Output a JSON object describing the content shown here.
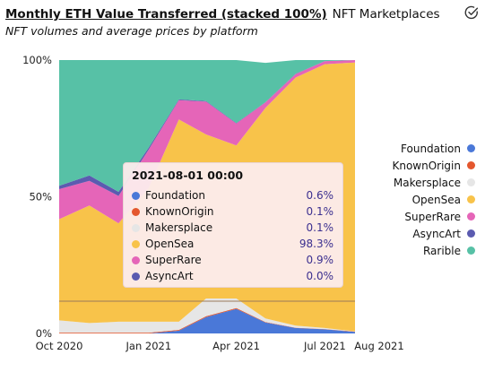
{
  "header": {
    "title": "Monthly ETH Value Transferred (stacked 100%)",
    "platform": "NFT Marketplaces",
    "subtitle": "NFT volumes and average prices by platform",
    "check_icon": "check-circle-icon"
  },
  "chart_data": {
    "type": "area",
    "stacked": "100%",
    "x": [
      "2020-10-01",
      "2020-11-01",
      "2020-12-01",
      "2021-01-01",
      "2021-02-01",
      "2021-03-01",
      "2021-04-01",
      "2021-05-01",
      "2021-06-01",
      "2021-07-01",
      "2021-08-01"
    ],
    "x_ticks": [
      "Oct 2020",
      "Jan 2021",
      "Apr 2021",
      "Jul 2021",
      "Aug 2021"
    ],
    "x_tick_dates": [
      "2020-10-01",
      "2021-01-01",
      "2021-04-01",
      "2021-07-01",
      "2021-08-01"
    ],
    "y_ticks": [
      "0%",
      "50%",
      "100%"
    ],
    "ylim": [
      0,
      100
    ],
    "grid": false,
    "legend_position": "right",
    "series": [
      {
        "name": "Foundation",
        "color": "#4a78d8",
        "values": [
          0,
          0,
          0,
          0,
          1,
          6,
          9,
          4,
          2,
          1.5,
          0.6
        ]
      },
      {
        "name": "KnownOrigin",
        "color": "#e4572e",
        "values": [
          0.3,
          0.3,
          0.3,
          0.3,
          0.3,
          0.3,
          0.3,
          0.2,
          0.1,
          0.1,
          0.1
        ]
      },
      {
        "name": "Makersplace",
        "color": "#e6e6e6",
        "values": [
          4.5,
          3.5,
          4,
          4,
          3,
          6.5,
          3.5,
          1.3,
          0.8,
          0.4,
          0.1
        ]
      },
      {
        "name": "OpenSea",
        "color": "#f8c34a",
        "values": [
          37,
          43,
          36,
          49,
          74,
          60,
          56,
          77,
          90.7,
          96.5,
          98.3
        ]
      },
      {
        "name": "SuperRare",
        "color": "#e565b8",
        "values": [
          11,
          9,
          10,
          14,
          7,
          12,
          8,
          2,
          1.3,
          1.1,
          0.9
        ]
      },
      {
        "name": "AsyncArt",
        "color": "#5b5bb0",
        "values": [
          1.2,
          2,
          1.5,
          0.7,
          0.3,
          0.2,
          0.2,
          0.1,
          0.1,
          0.05,
          0
        ]
      },
      {
        "name": "Rarible",
        "color": "#57c1a6",
        "values": [
          46,
          42.2,
          48.2,
          32,
          14.4,
          15,
          23,
          14.4,
          5,
          0.35,
          0
        ]
      }
    ],
    "tooltip": {
      "date": "2021-08-01 00:00",
      "rows": [
        {
          "name": "Foundation",
          "color": "#4a78d8",
          "value": "0.6%"
        },
        {
          "name": "KnownOrigin",
          "color": "#e4572e",
          "value": "0.1%"
        },
        {
          "name": "Makersplace",
          "color": "#e6e6e6",
          "value": "0.1%"
        },
        {
          "name": "OpenSea",
          "color": "#f8c34a",
          "value": "98.3%"
        },
        {
          "name": "SuperRare",
          "color": "#e565b8",
          "value": "0.9%"
        },
        {
          "name": "AsyncArt",
          "color": "#5b5bb0",
          "value": "0.0%"
        }
      ]
    }
  }
}
